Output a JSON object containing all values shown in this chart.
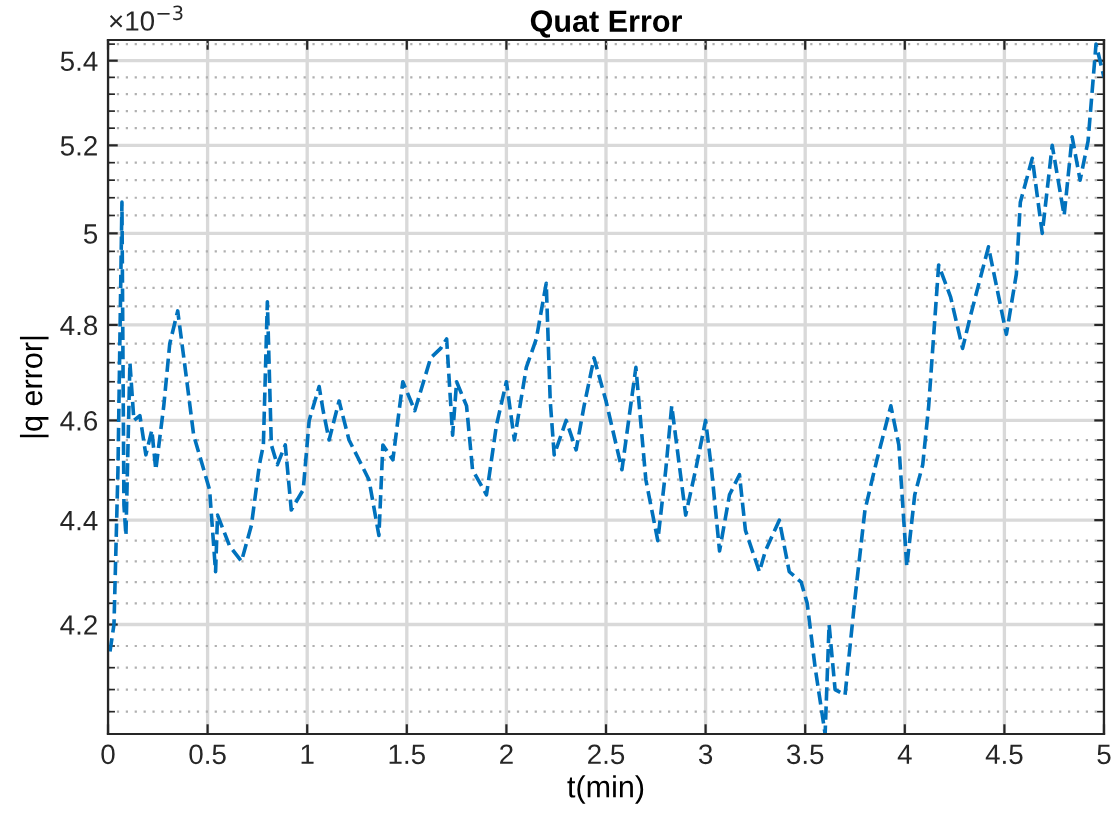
{
  "chart_data": {
    "type": "line",
    "title": "Quat Error",
    "xlabel": "t(min)",
    "ylabel": "|q error|",
    "annotations": [
      "×10$^{−3}$"
    ],
    "log": "y",
    "grid": true,
    "legend": false,
    "line_style": "dashed",
    "marker": "none",
    "xlim": [
      0,
      5
    ],
    "xticks": [
      0,
      0.5,
      1,
      1.5,
      2,
      2.5,
      3,
      3.5,
      4,
      4.5,
      5
    ],
    "ylim": [
      4.0,
      5.45
    ],
    "yticks": [
      4.2,
      4.4,
      4.6,
      4.8,
      5,
      5.2,
      5.4
    ],
    "series": [
      {
        "color": "#0072bd",
        "x": [
          0.01,
          0.03,
          0.05,
          0.07,
          0.08,
          0.09,
          0.11,
          0.13,
          0.16,
          0.19,
          0.22,
          0.24,
          0.28,
          0.31,
          0.35,
          0.39,
          0.43,
          0.51,
          0.54,
          0.55,
          0.61,
          0.67,
          0.72,
          0.76,
          0.78,
          0.8,
          0.82,
          0.85,
          0.89,
          0.92,
          0.98,
          1.01,
          1.06,
          1.08,
          1.11,
          1.16,
          1.21,
          1.26,
          1.31,
          1.36,
          1.38,
          1.43,
          1.48,
          1.54,
          1.62,
          1.67,
          1.7,
          1.73,
          1.75,
          1.8,
          1.83,
          1.9,
          1.95,
          2.0,
          2.04,
          2.1,
          2.15,
          2.2,
          2.22,
          2.24,
          2.3,
          2.35,
          2.39,
          2.44,
          2.5,
          2.58,
          2.65,
          2.7,
          2.76,
          2.8,
          2.83,
          2.9,
          2.95,
          3.0,
          3.03,
          3.07,
          3.12,
          3.17,
          3.2,
          3.27,
          3.3,
          3.37,
          3.42,
          3.48,
          3.51,
          3.55,
          3.6,
          3.62,
          3.65,
          3.7,
          3.75,
          3.8,
          3.86,
          3.93,
          3.97,
          4.01,
          4.05,
          4.09,
          4.12,
          4.17,
          4.23,
          4.29,
          4.33,
          4.42,
          4.51,
          4.56,
          4.58,
          4.64,
          4.69,
          4.74,
          4.8,
          4.84,
          4.88,
          4.92,
          4.96,
          5.0
        ],
        "values": [
          4.15,
          4.2,
          4.5,
          5.07,
          4.43,
          4.37,
          4.72,
          4.6,
          4.61,
          4.53,
          4.58,
          4.5,
          4.63,
          4.76,
          4.83,
          4.7,
          4.57,
          4.46,
          4.3,
          4.41,
          4.35,
          4.32,
          4.39,
          4.51,
          4.55,
          4.85,
          4.55,
          4.51,
          4.55,
          4.42,
          4.46,
          4.6,
          4.67,
          4.62,
          4.56,
          4.64,
          4.56,
          4.52,
          4.48,
          4.37,
          4.55,
          4.52,
          4.68,
          4.62,
          4.73,
          4.75,
          4.77,
          4.57,
          4.68,
          4.63,
          4.5,
          4.45,
          4.59,
          4.68,
          4.56,
          4.71,
          4.77,
          4.89,
          4.64,
          4.53,
          4.6,
          4.54,
          4.63,
          4.73,
          4.64,
          4.5,
          4.71,
          4.48,
          4.36,
          4.5,
          4.63,
          4.41,
          4.5,
          4.6,
          4.5,
          4.34,
          4.45,
          4.49,
          4.38,
          4.3,
          4.34,
          4.4,
          4.3,
          4.28,
          4.24,
          4.12,
          4.0,
          4.2,
          4.08,
          4.07,
          4.25,
          4.42,
          4.52,
          4.63,
          4.55,
          4.31,
          4.45,
          4.51,
          4.63,
          4.93,
          4.86,
          4.75,
          4.82,
          4.97,
          4.78,
          4.91,
          5.07,
          5.17,
          5.0,
          5.2,
          5.04,
          5.22,
          5.12,
          5.21,
          5.44,
          5.36
        ]
      }
    ]
  }
}
